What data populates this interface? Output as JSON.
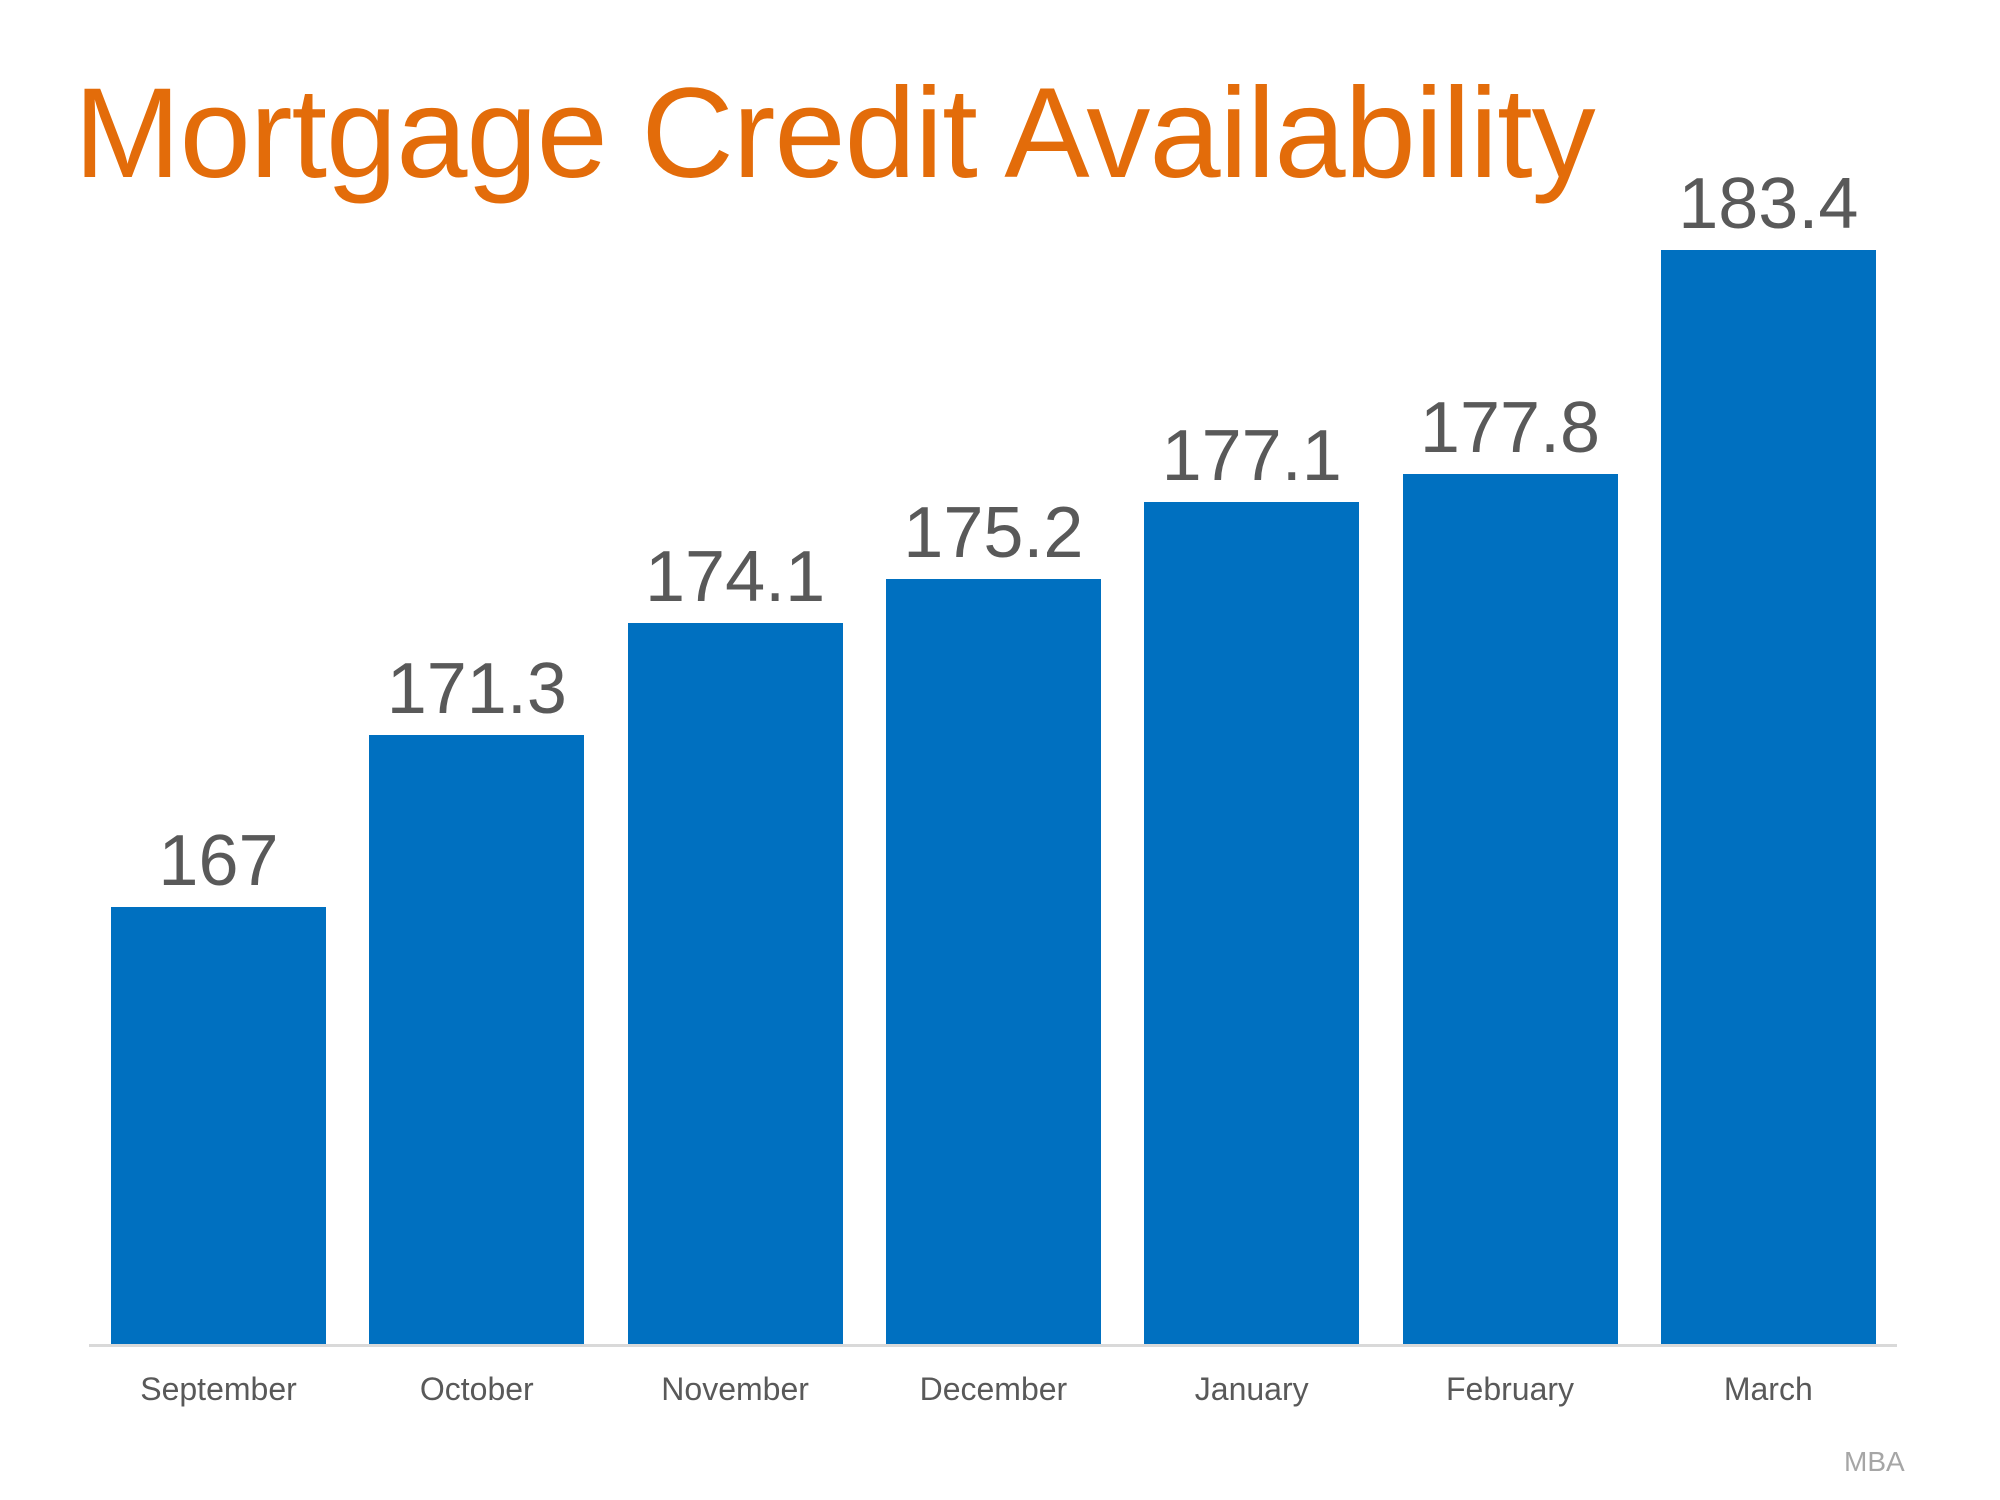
{
  "title": "Mortgage Credit Availability",
  "source": "MBA",
  "colors": {
    "title": "#E36C0A",
    "bar": "#0070C0",
    "label": "#595959",
    "axis": "#D9D9D9",
    "source": "#A6A6A6"
  },
  "chart_data": {
    "type": "bar",
    "title": "Mortgage Credit Availability",
    "xlabel": "",
    "ylabel": "",
    "categories": [
      "September",
      "October",
      "November",
      "December",
      "January",
      "February",
      "March"
    ],
    "values": [
      167,
      171.3,
      174.1,
      175.2,
      177.1,
      177.8,
      183.4
    ],
    "value_labels": [
      "167",
      "171.3",
      "174.1",
      "175.2",
      "177.1",
      "177.8",
      "183.4"
    ],
    "grid": false,
    "legend": null,
    "source": "MBA"
  }
}
